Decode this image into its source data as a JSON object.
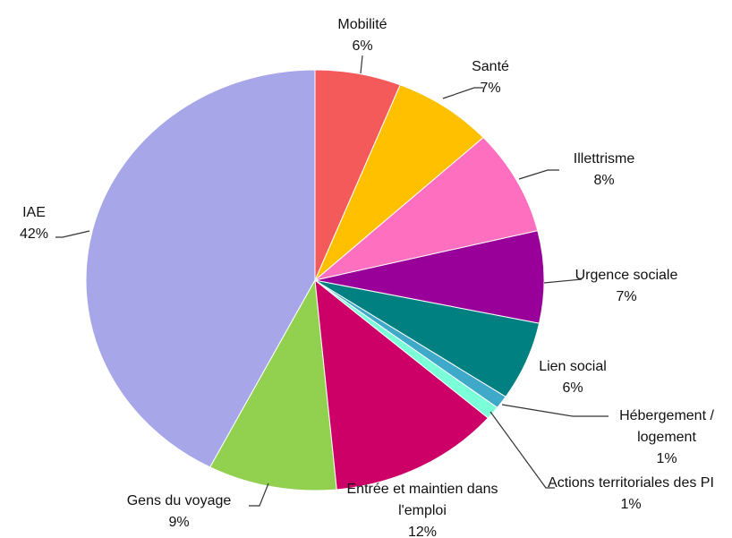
{
  "chart_data": {
    "type": "pie",
    "categories": [
      "Mobilité",
      "Santé",
      "Illettrisme",
      "Urgence sociale",
      "Lien social",
      "Hébergement / logement",
      "Actions territoriales des PI",
      "Entrée et maintien dans l'emploi",
      "Gens du voyage",
      "IAE"
    ],
    "values": [
      6,
      7,
      8,
      7,
      6,
      1,
      1,
      12,
      9,
      42
    ],
    "value_labels": [
      "6%",
      "7%",
      "8%",
      "7%",
      "6%",
      "1%",
      "1%",
      "12%",
      "9%",
      "42%"
    ],
    "colors": [
      "#f55a5a",
      "#ffc000",
      "#ff6fc0",
      "#990099",
      "#008080",
      "#3fa9c9",
      "#7affd8",
      "#cc0066",
      "#92d050",
      "#a6a6e8"
    ]
  }
}
